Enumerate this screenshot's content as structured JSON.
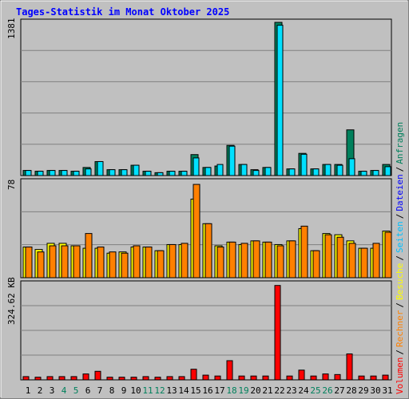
{
  "title": "Tages-Statistik im Monat Oktober 2025",
  "legend": {
    "volumen": "Volumen",
    "rechner": "Rechner",
    "besuche": "Besuche",
    "seiten": "Seiten",
    "dateien": "Dateien",
    "anfragen": "Anfragen",
    "sep": "/"
  },
  "colors": {
    "background": "#c0c0c0",
    "title": "#0000ff",
    "anfragen": "#00805c",
    "dateien": "#00e0ff",
    "seiten": "#00c0ff",
    "besuche": "#ffff00",
    "rechner": "#ff8000",
    "volumen": "#ff0000",
    "weekend": "#00805c"
  },
  "chart_data": [
    {
      "type": "bar",
      "panel": "top",
      "y_tick_label": "1381",
      "ymax": 1381,
      "grid": true,
      "categories": [
        "1",
        "2",
        "3",
        "4",
        "5",
        "6",
        "7",
        "8",
        "9",
        "10",
        "11",
        "12",
        "13",
        "14",
        "15",
        "16",
        "17",
        "18",
        "19",
        "20",
        "21",
        "22",
        "23",
        "24",
        "25",
        "26",
        "27",
        "28",
        "29",
        "30",
        "31"
      ],
      "series": [
        {
          "name": "Anfragen",
          "values": [
            46,
            39,
            46,
            46,
            39,
            73,
            126,
            53,
            53,
            93,
            39,
            26,
            39,
            39,
            189,
            73,
            86,
            272,
            100,
            53,
            73,
            1381,
            60,
            200,
            60,
            100,
            100,
            412,
            39,
            46,
            100
          ]
        },
        {
          "name": "Dateien",
          "values": [
            46,
            39,
            46,
            46,
            39,
            60,
            126,
            53,
            53,
            93,
            39,
            26,
            39,
            39,
            159,
            73,
            100,
            265,
            100,
            46,
            73,
            1355,
            60,
            192,
            60,
            100,
            93,
            152,
            39,
            46,
            80
          ]
        }
      ]
    },
    {
      "type": "bar",
      "panel": "middle",
      "y_tick_label": "78",
      "ymax": 78,
      "grid": true,
      "categories": [
        "1",
        "2",
        "3",
        "4",
        "5",
        "6",
        "7",
        "8",
        "9",
        "10",
        "11",
        "12",
        "13",
        "14",
        "15",
        "16",
        "17",
        "18",
        "19",
        "20",
        "21",
        "22",
        "23",
        "24",
        "25",
        "26",
        "27",
        "28",
        "29",
        "30",
        "31"
      ],
      "series": [
        {
          "name": "Seiten",
          "values": [
            25,
            23,
            28,
            28,
            26,
            24,
            24,
            20,
            21,
            25,
            25,
            22,
            27,
            27,
            64,
            44,
            26,
            29,
            27,
            30,
            29,
            27,
            30,
            40,
            22,
            36,
            35,
            30,
            24,
            24,
            38
          ]
        },
        {
          "name": "Besuche",
          "values": [
            25,
            23,
            28,
            28,
            26,
            24,
            24,
            20,
            21,
            25,
            25,
            22,
            27,
            27,
            64,
            44,
            26,
            29,
            27,
            30,
            29,
            27,
            30,
            40,
            22,
            36,
            35,
            30,
            24,
            24,
            38
          ]
        },
        {
          "name": "Rechner",
          "values": [
            25,
            21,
            26,
            26,
            26,
            36,
            25,
            21,
            20,
            26,
            25,
            22,
            27,
            28,
            76,
            44,
            25,
            29,
            28,
            30,
            29,
            26,
            30,
            42,
            22,
            35,
            33,
            28,
            24,
            28,
            37
          ]
        }
      ]
    },
    {
      "type": "bar",
      "panel": "bottom",
      "y_tick_label": "324.62 KB",
      "ymax": 324.62,
      "ymax_units": "KB",
      "grid": true,
      "categories": [
        "1",
        "2",
        "3",
        "4",
        "5",
        "6",
        "7",
        "8",
        "9",
        "10",
        "11",
        "12",
        "13",
        "14",
        "15",
        "16",
        "17",
        "18",
        "19",
        "20",
        "21",
        "22",
        "23",
        "24",
        "25",
        "26",
        "27",
        "28",
        "29",
        "30",
        "31"
      ],
      "series": [
        {
          "name": "Volumen",
          "values": [
            11,
            9,
            11,
            11,
            11,
            20,
            29,
            9,
            9,
            9,
            11,
            9,
            11,
            11,
            36,
            16,
            13,
            65,
            13,
            13,
            13,
            320,
            13,
            33,
            13,
            20,
            18,
            88,
            13,
            13,
            16
          ]
        }
      ]
    }
  ],
  "weekend_days": [
    4,
    5,
    11,
    12,
    18,
    19,
    25,
    26
  ]
}
